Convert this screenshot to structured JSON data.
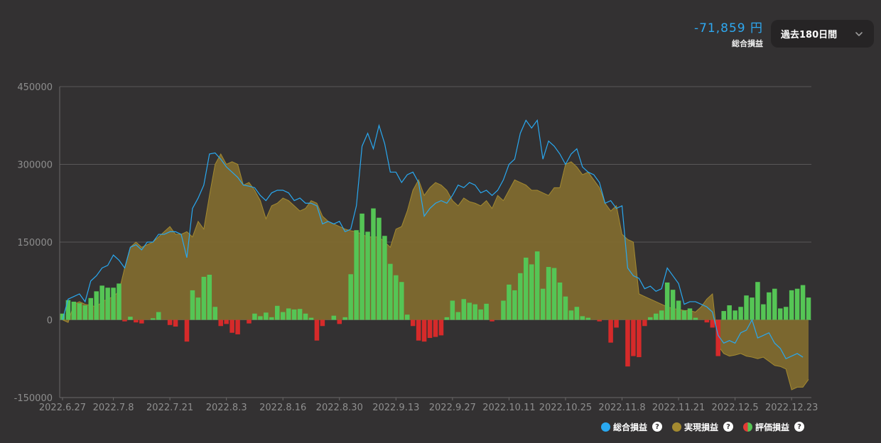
{
  "header": {
    "total_value": "-71,859 円",
    "total_label": "総合損益",
    "period": "過去180日間"
  },
  "legend": [
    {
      "label": "総合損益",
      "color": "#29a8f0"
    },
    {
      "label": "実現損益",
      "color": "#a48a30"
    },
    {
      "label": "評価損益",
      "color": "split"
    }
  ],
  "help_glyph": "?",
  "colors": {
    "total_line": "#29a8f0",
    "realized_fill": "#7f6a2f",
    "realized_line": "#a48a30",
    "positive_bar": "#55c555",
    "negative_bar": "#d62a2a",
    "grid": "#5a5858",
    "tick_text": "#8e8e8e"
  },
  "chart_data": {
    "type": "bar",
    "xlabel": "",
    "ylabel": "",
    "ylim": [
      -150000,
      450000
    ],
    "yticks": [
      450000,
      300000,
      150000,
      0,
      -150000
    ],
    "x_tick_labels": [
      "2022.6.27",
      "2022.7.8",
      "2022.7.21",
      "2022.8.3",
      "2022.8.16",
      "2022.8.30",
      "2022.9.13",
      "2022.9.27",
      "2022.10.11",
      "2022.10.25",
      "2022.11.8",
      "2022.11.21",
      "2022.12.5",
      "2022.12.23"
    ],
    "x_tick_index": [
      0,
      9,
      19,
      29,
      39,
      49,
      59,
      69,
      79,
      89,
      99,
      109,
      119,
      129
    ],
    "series": [
      {
        "name": "評価損益",
        "kind": "bar",
        "values": [
          12000,
          38000,
          35000,
          32000,
          28000,
          42000,
          55000,
          66000,
          62000,
          62000,
          70000,
          -3000,
          6000,
          -5000,
          -7000,
          0,
          3000,
          15000,
          0,
          -10000,
          -13000,
          0,
          -42000,
          57000,
          43000,
          83000,
          87000,
          25000,
          -12000,
          -8000,
          -25000,
          -28000,
          0,
          -7000,
          12000,
          7000,
          14000,
          5000,
          27000,
          15000,
          22000,
          20000,
          21000,
          12000,
          4000,
          -40000,
          -12000,
          0,
          8000,
          -8000,
          5000,
          88000,
          173000,
          205000,
          170000,
          215000,
          197000,
          162000,
          108000,
          86000,
          73000,
          10000,
          -12000,
          -40000,
          -42000,
          -35000,
          -33000,
          -30000,
          5000,
          37000,
          15000,
          40000,
          33000,
          30000,
          20000,
          31000,
          -3000,
          0,
          37000,
          68000,
          57000,
          90000,
          120000,
          107000,
          132000,
          60000,
          102000,
          100000,
          72000,
          45000,
          18000,
          25000,
          7000,
          4000,
          0,
          -3000,
          0,
          -44000,
          -15000,
          0,
          -90000,
          -70000,
          -72000,
          -12000,
          5000,
          12000,
          18000,
          72000,
          58000,
          37000,
          18000,
          22000,
          4000,
          0,
          -5000,
          -15000,
          -70000,
          17000,
          28000,
          18000,
          25000,
          47000,
          43000,
          73000,
          30000,
          53000,
          60000,
          22000,
          25000,
          57000,
          60000,
          67000,
          43000
        ]
      },
      {
        "name": "実現損益",
        "kind": "area",
        "values": [
          0,
          -5000,
          30000,
          35000,
          30000,
          28000,
          25000,
          35000,
          40000,
          45000,
          55000,
          100000,
          140000,
          150000,
          140000,
          145000,
          150000,
          160000,
          170000,
          180000,
          165000,
          165000,
          170000,
          160000,
          190000,
          175000,
          240000,
          300000,
          320000,
          300000,
          305000,
          300000,
          260000,
          265000,
          250000,
          230000,
          195000,
          220000,
          225000,
          235000,
          230000,
          220000,
          210000,
          215000,
          230000,
          225000,
          200000,
          190000,
          185000,
          180000,
          175000,
          172000,
          170000,
          165000,
          160000,
          160000,
          160000,
          150000,
          140000,
          175000,
          180000,
          210000,
          250000,
          270000,
          240000,
          255000,
          265000,
          260000,
          250000,
          230000,
          220000,
          235000,
          228000,
          225000,
          220000,
          230000,
          215000,
          240000,
          230000,
          250000,
          270000,
          265000,
          260000,
          250000,
          250000,
          245000,
          240000,
          255000,
          255000,
          300000,
          305000,
          295000,
          280000,
          285000,
          270000,
          255000,
          225000,
          210000,
          220000,
          165000,
          155000,
          150000,
          50000,
          45000,
          40000,
          35000,
          30000,
          25000,
          22000,
          20000,
          18000,
          18000,
          15000,
          25000,
          40000,
          50000,
          -50000,
          -65000,
          -70000,
          -68000,
          -65000,
          -70000,
          -72000,
          -75000,
          -72000,
          -80000,
          -88000,
          -90000,
          -95000,
          -135000,
          -130000,
          -130000,
          -115000
        ]
      },
      {
        "name": "総合損益",
        "kind": "line",
        "values": [
          0,
          40000,
          45000,
          50000,
          35000,
          75000,
          85000,
          100000,
          105000,
          125000,
          115000,
          100000,
          140000,
          145000,
          135000,
          150000,
          150000,
          165000,
          165000,
          170000,
          170000,
          165000,
          120000,
          215000,
          235000,
          260000,
          320000,
          322000,
          310000,
          295000,
          285000,
          275000,
          260000,
          258000,
          255000,
          240000,
          230000,
          245000,
          250000,
          250000,
          245000,
          230000,
          235000,
          225000,
          225000,
          220000,
          185000,
          190000,
          185000,
          190000,
          170000,
          175000,
          220000,
          335000,
          360000,
          330000,
          375000,
          340000,
          285000,
          285000,
          265000,
          280000,
          285000,
          265000,
          200000,
          215000,
          225000,
          230000,
          225000,
          240000,
          260000,
          255000,
          265000,
          260000,
          245000,
          250000,
          240000,
          250000,
          270000,
          300000,
          310000,
          360000,
          385000,
          370000,
          385000,
          310000,
          345000,
          335000,
          320000,
          300000,
          320000,
          330000,
          295000,
          285000,
          280000,
          265000,
          225000,
          230000,
          215000,
          220000,
          100000,
          85000,
          80000,
          60000,
          65000,
          55000,
          60000,
          100000,
          85000,
          70000,
          30000,
          35000,
          35000,
          30000,
          25000,
          15000,
          -30000,
          -45000,
          -40000,
          -45000,
          -25000,
          -20000,
          0,
          -35000,
          -30000,
          -25000,
          -45000,
          -55000,
          -75000,
          -70000,
          -65000,
          -72000
        ]
      }
    ]
  }
}
